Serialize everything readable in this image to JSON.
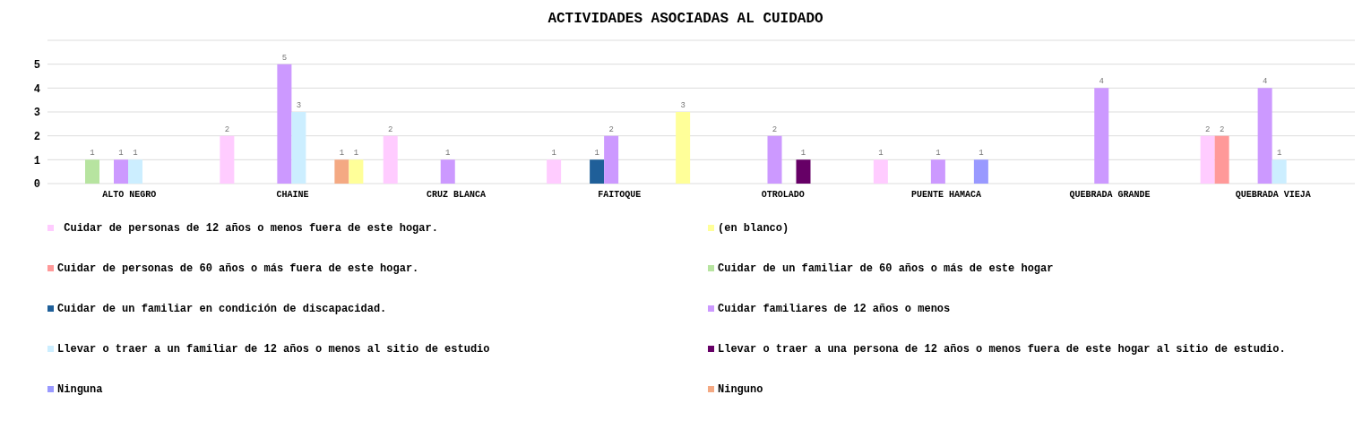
{
  "chart_data": {
    "type": "bar",
    "title": "ACTIVIDADES ASOCIADAS AL CUIDADO",
    "categories": [
      "ALTO NEGRO",
      "CHAINE",
      "CRUZ BLANCA",
      "FAITOQUE",
      "OTROLADO",
      "PUENTE HAMACA",
      "QUEBRADA GRANDE",
      "QUEBRADA VIEJA"
    ],
    "series": [
      {
        "name": "  Cuidar de personas de 12 años o menos fuera de este hogar.",
        "color": "#ffccff",
        "values": [
          null,
          2,
          2,
          1,
          null,
          1,
          null,
          2
        ]
      },
      {
        "name": "Cuidar de personas de 60 años o más fuera de este hogar.",
        "color": "#ff9999",
        "values": [
          null,
          null,
          null,
          null,
          null,
          null,
          null,
          2
        ]
      },
      {
        "name": "Cuidar de un familiar de 60 años o más de este hogar",
        "color": "#b7e4a0",
        "values": [
          1,
          null,
          null,
          null,
          null,
          null,
          null,
          null
        ]
      },
      {
        "name": "Cuidar de un familiar en condición de discapacidad.",
        "color": "#1f5f99",
        "values": [
          null,
          null,
          null,
          1,
          null,
          null,
          null,
          null
        ]
      },
      {
        "name": "Cuidar familiares de 12 años o menos",
        "color": "#cc99ff",
        "values": [
          1,
          5,
          1,
          2,
          2,
          1,
          4,
          4
        ]
      },
      {
        "name": "Llevar o traer a un familiar de 12 años o menos al sitio de estudio",
        "color": "#cceeff",
        "values": [
          1,
          3,
          null,
          null,
          null,
          null,
          null,
          1
        ]
      },
      {
        "name": "Llevar o traer a una persona de 12 años o menos fuera de este hogar al sitio de estudio.",
        "color": "#660066",
        "values": [
          null,
          null,
          null,
          null,
          1,
          null,
          null,
          null
        ]
      },
      {
        "name": "Ninguna",
        "color": "#9999ff",
        "values": [
          null,
          null,
          null,
          null,
          null,
          1,
          null,
          null
        ]
      },
      {
        "name": "Ninguno",
        "color": "#f4a983",
        "values": [
          null,
          1,
          null,
          null,
          null,
          null,
          null,
          null
        ]
      },
      {
        "name": "(en blanco)",
        "color": "#ffff99",
        "values": [
          null,
          1,
          null,
          3,
          null,
          null,
          null,
          null
        ]
      }
    ],
    "ylim": [
      0,
      6
    ],
    "yticks": [
      0,
      1,
      2,
      3,
      4,
      5,
      {
        "value": 6,
        "label": null
      }
    ],
    "grid": "y",
    "legend": "bottom",
    "data_labels": true
  }
}
